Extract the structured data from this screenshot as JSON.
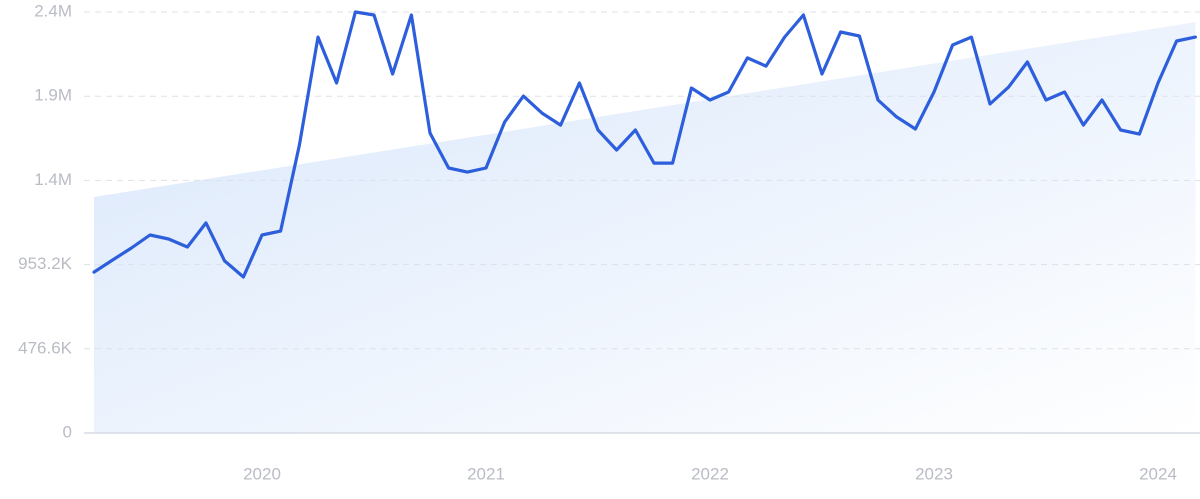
{
  "chart_data": {
    "type": "line",
    "x": [
      2019.25,
      2019.333,
      2019.417,
      2019.5,
      2019.583,
      2019.667,
      2019.75,
      2019.833,
      2019.917,
      2020,
      2020.083,
      2020.167,
      2020.25,
      2020.333,
      2020.417,
      2020.5,
      2020.583,
      2020.667,
      2020.75,
      2020.833,
      2020.917,
      2021,
      2021.083,
      2021.167,
      2021.25,
      2021.333,
      2021.417,
      2021.5,
      2021.583,
      2021.667,
      2021.75,
      2021.833,
      2021.917,
      2022,
      2022.083,
      2022.167,
      2022.25,
      2022.333,
      2022.417,
      2022.5,
      2022.583,
      2022.667,
      2022.75,
      2022.833,
      2022.917,
      2023,
      2023.083,
      2023.167,
      2023.25,
      2023.333,
      2023.417,
      2023.5,
      2023.583,
      2023.667,
      2023.75,
      2023.833,
      2023.917,
      2024,
      2024.083,
      2024.167
    ],
    "series": [
      {
        "color": "#2d5fdc",
        "values": [
          911000,
          979000,
          1047000,
          1121000,
          1098000,
          1053000,
          1189000,
          974000,
          883000,
          1121000,
          1143000,
          1630000,
          2241000,
          1981000,
          2383000,
          2366000,
          2032000,
          2366000,
          1698000,
          1500000,
          1477000,
          1500000,
          1760000,
          1907000,
          1811000,
          1743000,
          1981000,
          1715000,
          1602000,
          1715000,
          1528000,
          1528000,
          1953000,
          1885000,
          1930000,
          2123000,
          2077000,
          2241000,
          2366000,
          2032000,
          2270000,
          2247000,
          1885000,
          1789000,
          1721000,
          1930000,
          2196000,
          2241000,
          1862000,
          1958000,
          2100000,
          1885000,
          1930000,
          1743000,
          1885000,
          1715000,
          1692000,
          1981000,
          2219000,
          2241000
        ]
      }
    ],
    "trend": {
      "x": [
        2019.25,
        2024.167
      ],
      "values": [
        1336000,
        2326000
      ],
      "color": "#d9e7fb"
    },
    "xlim": [
      2019.25,
      2024.167
    ],
    "xticks": [
      2020,
      2021,
      2022,
      2023,
      2024
    ],
    "ylim": [
      0,
      2383000
    ],
    "yticks": [
      0,
      {
        "value": 476600,
        "label": "476.6K"
      },
      {
        "value": 953200,
        "label": "953.2K"
      },
      {
        "value": 1429800,
        "label": "1.4M"
      },
      {
        "value": 1906400,
        "label": "1.9M"
      },
      {
        "value": 2383000,
        "label": "2.4M"
      }
    ],
    "grid": true
  }
}
